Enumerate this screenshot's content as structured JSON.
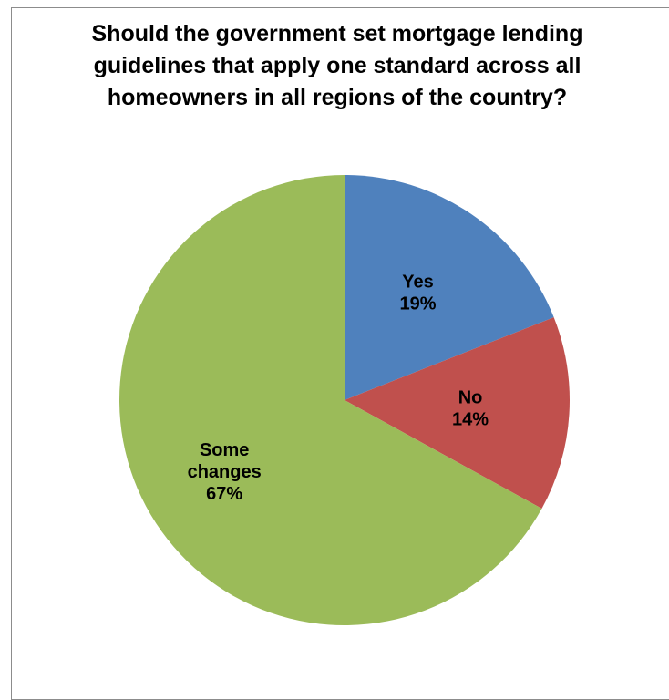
{
  "chart_data": {
    "type": "pie",
    "title_lines": [
      "Should the government set mortgage lending",
      "guidelines that apply one standard across all",
      "homeowners in all regions of the country?"
    ],
    "slices": [
      {
        "label": "Yes",
        "value": 19,
        "value_label": "19%",
        "color": "#4f81bd"
      },
      {
        "label": "No",
        "value": 14,
        "value_label": "14%",
        "color": "#c0504d"
      },
      {
        "label": "Some changes",
        "label_lines": [
          "Some",
          "changes"
        ],
        "value": 67,
        "value_label": "67%",
        "color": "#9bbb59"
      }
    ],
    "start_angle_deg": 0,
    "direction": "clockwise",
    "legend": "none"
  }
}
